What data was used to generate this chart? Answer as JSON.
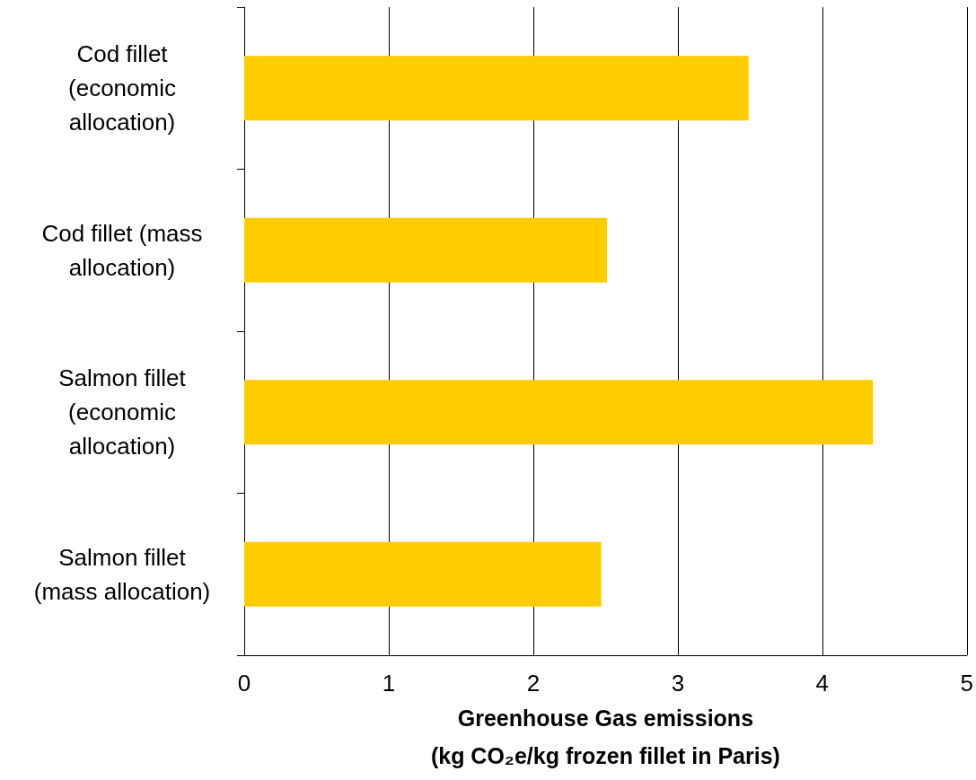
{
  "chart_data": {
    "type": "bar",
    "orientation": "horizontal",
    "categories": [
      "Cod fillet\n(economic\nallocation)",
      "Cod fillet (mass\nallocation)",
      "Salmon fillet\n(economic\nallocation)",
      "Salmon fillet\n(mass allocation)"
    ],
    "values": [
      3.49,
      2.51,
      4.35,
      2.47
    ],
    "color": "#ffcc00",
    "xlabel": "Greenhouse Gas emissions\n(kg CO₂e/kg frozen fillet in Paris)",
    "xlim": [
      0,
      5
    ],
    "xticks": [
      0,
      1,
      2,
      3,
      4,
      5
    ],
    "grid": "x"
  }
}
